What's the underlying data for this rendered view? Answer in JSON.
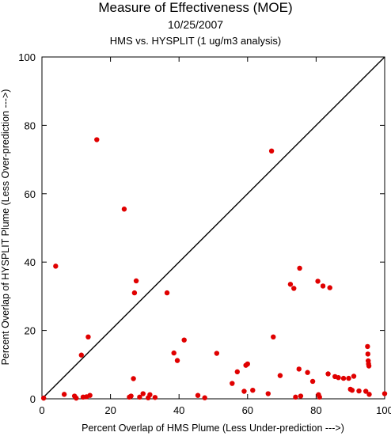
{
  "chart_data": {
    "type": "scatter",
    "title": "Measure of Effectiveness (MOE)",
    "subtitle": "10/25/2007",
    "subtitle2": "HMS vs. HYSPLIT  (1 ug/m3 analysis)",
    "xlabel": "Percent Overlap of HMS Plume (Less Under-prediction --->)",
    "ylabel": "Percent Overlap of HYSPLIT Plume (Less Over-prediction --->)",
    "xlim": [
      0,
      100
    ],
    "ylim": [
      0,
      100
    ],
    "xticks": [
      "0",
      "20",
      "40",
      "60",
      "80",
      "100"
    ],
    "yticks": [
      "0",
      "20",
      "40",
      "60",
      "80",
      "100"
    ],
    "grid": false,
    "reference_line": "y = x",
    "marker_color": "#e00000",
    "points": [
      [
        0.5,
        0.2
      ],
      [
        4,
        38.8
      ],
      [
        6.5,
        1.3
      ],
      [
        9.5,
        0.8
      ],
      [
        10,
        0.2
      ],
      [
        11.5,
        12.8
      ],
      [
        12,
        0.5
      ],
      [
        13,
        0.6
      ],
      [
        13.5,
        18.1
      ],
      [
        14,
        1
      ],
      [
        16,
        75.8
      ],
      [
        24,
        55.5
      ],
      [
        25.5,
        0.5
      ],
      [
        26,
        0.8
      ],
      [
        26.7,
        5.9
      ],
      [
        27,
        31
      ],
      [
        27.5,
        34.5
      ],
      [
        28.5,
        0.5
      ],
      [
        29.5,
        1.5
      ],
      [
        31,
        0.3
      ],
      [
        31.5,
        1.2
      ],
      [
        33,
        0.4
      ],
      [
        36.5,
        31
      ],
      [
        38.5,
        13.4
      ],
      [
        39.5,
        11.2
      ],
      [
        41.5,
        17.2
      ],
      [
        45.5,
        1
      ],
      [
        47.5,
        0.3
      ],
      [
        51,
        13.3
      ],
      [
        55.5,
        4.5
      ],
      [
        57,
        7.9
      ],
      [
        59,
        2.2
      ],
      [
        59.5,
        9.8
      ],
      [
        60,
        10.2
      ],
      [
        61.5,
        2.5
      ],
      [
        66,
        1.5
      ],
      [
        67,
        72.5
      ],
      [
        67.5,
        18.1
      ],
      [
        69.5,
        6.8
      ],
      [
        72.5,
        33.5
      ],
      [
        73.5,
        32.3
      ],
      [
        74,
        0.5
      ],
      [
        75,
        8.7
      ],
      [
        75.2,
        38.2
      ],
      [
        75.5,
        0.8
      ],
      [
        77.5,
        7.7
      ],
      [
        79,
        5.1
      ],
      [
        80.5,
        34.4
      ],
      [
        80.7,
        1.2
      ],
      [
        81,
        0.5
      ],
      [
        82,
        33
      ],
      [
        83.5,
        7.3
      ],
      [
        84,
        32.5
      ],
      [
        85.5,
        6.5
      ],
      [
        86.5,
        6.2
      ],
      [
        88,
        6
      ],
      [
        89.5,
        6
      ],
      [
        90,
        2.8
      ],
      [
        90.5,
        2.5
      ],
      [
        91,
        6.6
      ],
      [
        92.5,
        2.3
      ],
      [
        94.5,
        2.2
      ],
      [
        95,
        15.3
      ],
      [
        95.1,
        13.1
      ],
      [
        95.2,
        11.1
      ],
      [
        95.3,
        10.2
      ],
      [
        95.4,
        9.6
      ],
      [
        95.5,
        1.3
      ],
      [
        100,
        1.5
      ]
    ]
  }
}
